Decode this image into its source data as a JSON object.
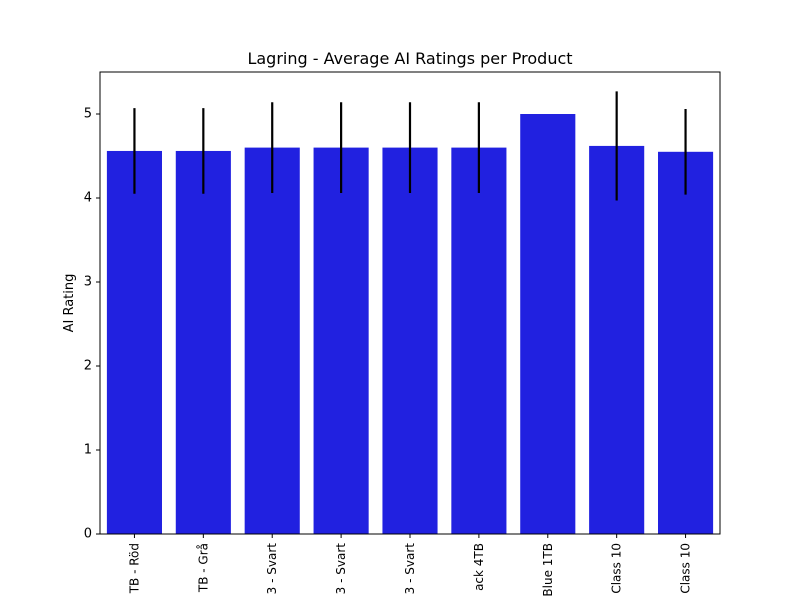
{
  "chart_data": {
    "type": "bar",
    "title": "Lagring - Average AI Ratings per Product",
    "xlabel": "",
    "ylabel": "AI Rating",
    "ylim": [
      0,
      5.5
    ],
    "yticks": [
      0,
      1,
      2,
      3,
      4,
      5
    ],
    "categories": [
      "TB  - Röd",
      "TB  - Grå",
      "3 - Svart",
      "3 - Svart",
      "3 - Svart",
      "ack 4TB",
      "Blue 1TB",
      "Class 10",
      "Class 10"
    ],
    "values": [
      4.56,
      4.56,
      4.6,
      4.6,
      4.6,
      4.6,
      5.0,
      4.62,
      4.55
    ],
    "error": [
      0.51,
      0.51,
      0.54,
      0.54,
      0.54,
      0.54,
      0.0,
      0.65,
      0.51
    ],
    "bar_color": "#2121e0",
    "error_color": "#000000",
    "grid": false,
    "legend": "none"
  }
}
